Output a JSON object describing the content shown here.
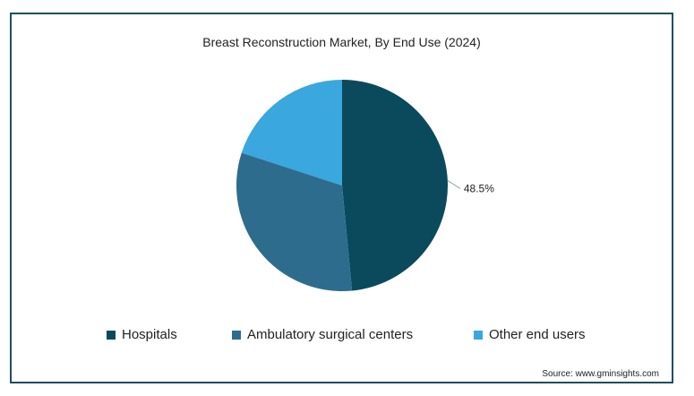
{
  "chart_data": {
    "type": "pie",
    "title": "Breast Reconstruction Market, By End Use (2024)",
    "slices": [
      {
        "name": "Hospitals",
        "value": 48.5,
        "color": "#0b4a5c",
        "label": "48.5%"
      },
      {
        "name": "Ambulatory surgical centers",
        "value": 31.5,
        "color": "#2e6c8d",
        "label": ""
      },
      {
        "name": "Other end users",
        "value": 20.0,
        "color": "#3aa7de",
        "label": ""
      }
    ],
    "legend_position": "bottom"
  },
  "source": "Source: www.gminsights.com"
}
